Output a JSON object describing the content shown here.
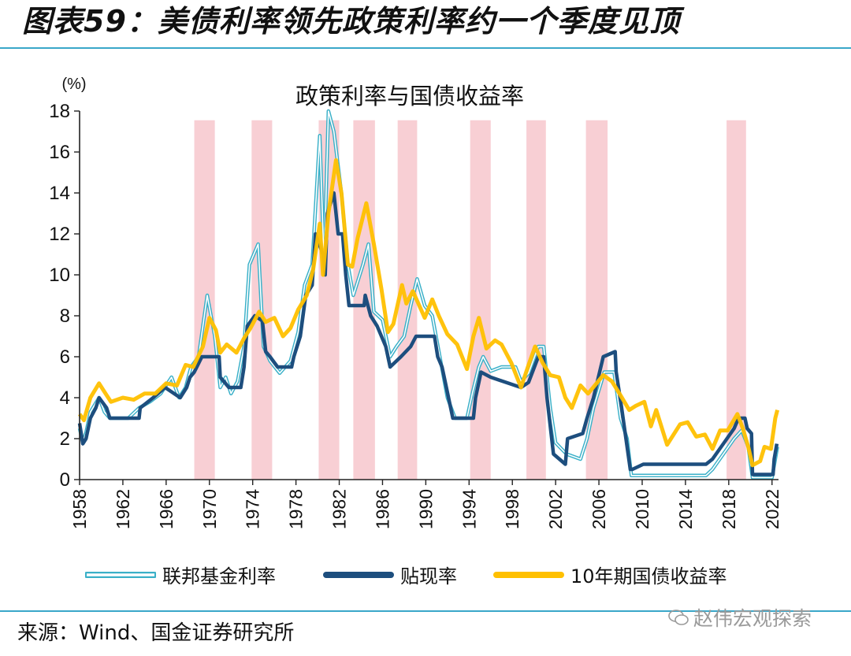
{
  "figure": {
    "title": "图表59：美债利率领先政策利率约一个季度见顶",
    "source": "来源：Wind、国金证券研究所",
    "watermark": "赵伟宏观探索"
  },
  "legend": {
    "items": [
      "联邦基金利率",
      "贴现率",
      "10年期国债收益率"
    ]
  },
  "colors": {
    "fed_funds": "#3ab0c8",
    "discount": "#1d4e7e",
    "treasury_10y": "#ffc000",
    "shading": "#f7c7cc",
    "rule": "#3aa7c9"
  },
  "chart_data": {
    "type": "line",
    "title": "政策利率与国债收益率",
    "unit_label": "(%)",
    "xlabel": "",
    "ylabel": "",
    "xlim": [
      1958,
      2022.6
    ],
    "ylim": [
      0,
      18
    ],
    "y_ticks": [
      0,
      2,
      4,
      6,
      8,
      10,
      12,
      14,
      16,
      18
    ],
    "x_ticks": [
      1958,
      1962,
      1966,
      1970,
      1974,
      1978,
      1982,
      1986,
      1990,
      1994,
      1998,
      2002,
      2006,
      2010,
      2014,
      2018,
      2022
    ],
    "grid": false,
    "legend_position": "bottom",
    "shaded_periods": [
      [
        1968.6,
        1970.5
      ],
      [
        1973.9,
        1975.8
      ],
      [
        1980.1,
        1982.0
      ],
      [
        1983.3,
        1985.3
      ],
      [
        1987.4,
        1989.2
      ],
      [
        1994.1,
        1996.0
      ],
      [
        1999.3,
        2001.1
      ],
      [
        2004.8,
        2006.8
      ],
      [
        2017.8,
        2019.6
      ]
    ],
    "series": [
      {
        "name": "联邦基金利率",
        "style": "double",
        "points": [
          [
            1958,
            2.5
          ],
          [
            1958.3,
            1.8
          ],
          [
            1958.6,
            2.3
          ],
          [
            1959,
            3.3
          ],
          [
            1959.8,
            4.0
          ],
          [
            1960.3,
            3.3
          ],
          [
            1960.8,
            3.0
          ],
          [
            1962.5,
            3.0
          ],
          [
            1963.5,
            3.5
          ],
          [
            1964.5,
            3.8
          ],
          [
            1965.5,
            4.2
          ],
          [
            1966.5,
            5.0
          ],
          [
            1967.2,
            4.0
          ],
          [
            1967.8,
            4.5
          ],
          [
            1968.3,
            5.5
          ],
          [
            1969,
            6.0
          ],
          [
            1969.8,
            9.0
          ],
          [
            1970.5,
            7.0
          ],
          [
            1971,
            4.5
          ],
          [
            1971.5,
            5.0
          ],
          [
            1972,
            4.2
          ],
          [
            1972.6,
            4.8
          ],
          [
            1973.2,
            6.5
          ],
          [
            1973.7,
            10.5
          ],
          [
            1974.5,
            11.5
          ],
          [
            1975,
            6.5
          ],
          [
            1975.6,
            5.8
          ],
          [
            1976.5,
            5.2
          ],
          [
            1977.5,
            5.8
          ],
          [
            1978.2,
            7.2
          ],
          [
            1978.8,
            9.5
          ],
          [
            1979.5,
            10.5
          ],
          [
            1980.2,
            16.8
          ],
          [
            1980.6,
            10.5
          ],
          [
            1981.0,
            18.0
          ],
          [
            1981.5,
            17.0
          ],
          [
            1982.2,
            14.0
          ],
          [
            1982.8,
            10.5
          ],
          [
            1983.3,
            9.0
          ],
          [
            1984.2,
            10.5
          ],
          [
            1984.7,
            11.5
          ],
          [
            1985.2,
            8.2
          ],
          [
            1986,
            7.8
          ],
          [
            1986.7,
            6.0
          ],
          [
            1987.3,
            6.5
          ],
          [
            1988,
            7.0
          ],
          [
            1988.6,
            8.5
          ],
          [
            1989.2,
            9.8
          ],
          [
            1989.9,
            8.5
          ],
          [
            1990.6,
            8.0
          ],
          [
            1991.3,
            6.0
          ],
          [
            1992,
            4.0
          ],
          [
            1992.7,
            3.0
          ],
          [
            1993.8,
            3.0
          ],
          [
            1994.3,
            4.2
          ],
          [
            1994.9,
            5.5
          ],
          [
            1995.3,
            6.0
          ],
          [
            1996,
            5.3
          ],
          [
            1997,
            5.5
          ],
          [
            1998.3,
            5.5
          ],
          [
            1998.8,
            4.8
          ],
          [
            1999.5,
            5.2
          ],
          [
            2000.4,
            6.5
          ],
          [
            2000.9,
            6.5
          ],
          [
            2001.5,
            3.5
          ],
          [
            2002,
            1.8
          ],
          [
            2003,
            1.25
          ],
          [
            2004.3,
            1.0
          ],
          [
            2004.9,
            2.0
          ],
          [
            2005.5,
            3.5
          ],
          [
            2006.5,
            5.25
          ],
          [
            2007.4,
            5.25
          ],
          [
            2008,
            3.0
          ],
          [
            2008.6,
            2.0
          ],
          [
            2009,
            0.2
          ],
          [
            2015.9,
            0.2
          ],
          [
            2016.5,
            0.5
          ],
          [
            2017.5,
            1.25
          ],
          [
            2018.5,
            2.0
          ],
          [
            2019.2,
            2.4
          ],
          [
            2019.8,
            1.6
          ],
          [
            2020.2,
            0.1
          ],
          [
            2022,
            0.1
          ],
          [
            2022.3,
            1.0
          ],
          [
            2022.5,
            1.6
          ]
        ]
      },
      {
        "name": "贴现率",
        "style": "solid",
        "points": [
          [
            1958,
            2.75
          ],
          [
            1958.3,
            1.75
          ],
          [
            1958.6,
            2.0
          ],
          [
            1959,
            3.0
          ],
          [
            1959.5,
            3.5
          ],
          [
            1959.8,
            4.0
          ],
          [
            1960.5,
            3.5
          ],
          [
            1960.8,
            3.0
          ],
          [
            1963.5,
            3.0
          ],
          [
            1963.6,
            3.5
          ],
          [
            1964.8,
            4.0
          ],
          [
            1965.9,
            4.5
          ],
          [
            1967.3,
            4.0
          ],
          [
            1967.9,
            4.5
          ],
          [
            1968.2,
            5.0
          ],
          [
            1968.6,
            5.25
          ],
          [
            1969.3,
            6.0
          ],
          [
            1970.9,
            6.0
          ],
          [
            1971,
            5.0
          ],
          [
            1971.8,
            4.5
          ],
          [
            1972.9,
            4.5
          ],
          [
            1973.2,
            5.5
          ],
          [
            1973.5,
            7.5
          ],
          [
            1974.2,
            8.0
          ],
          [
            1974.9,
            7.75
          ],
          [
            1975.2,
            6.25
          ],
          [
            1975.6,
            6.0
          ],
          [
            1976.3,
            5.5
          ],
          [
            1977.6,
            5.5
          ],
          [
            1977.8,
            6.0
          ],
          [
            1978.4,
            7.0
          ],
          [
            1978.9,
            9.0
          ],
          [
            1979.5,
            9.5
          ],
          [
            1979.8,
            12.0
          ],
          [
            1980.5,
            11.0
          ],
          [
            1980.7,
            10.0
          ],
          [
            1980.9,
            13.0
          ],
          [
            1981.5,
            14.0
          ],
          [
            1981.9,
            12.0
          ],
          [
            1982.3,
            12.0
          ],
          [
            1982.6,
            10.0
          ],
          [
            1982.9,
            8.5
          ],
          [
            1984.3,
            8.5
          ],
          [
            1984.4,
            9.0
          ],
          [
            1984.9,
            8.0
          ],
          [
            1985.5,
            7.5
          ],
          [
            1986.3,
            6.5
          ],
          [
            1986.7,
            5.5
          ],
          [
            1987.7,
            6.0
          ],
          [
            1988.6,
            6.5
          ],
          [
            1989.1,
            7.0
          ],
          [
            1990.8,
            7.0
          ],
          [
            1991.1,
            6.0
          ],
          [
            1991.5,
            5.5
          ],
          [
            1991.9,
            4.5
          ],
          [
            1992.5,
            3.0
          ],
          [
            1994.4,
            3.0
          ],
          [
            1994.6,
            4.0
          ],
          [
            1994.9,
            4.75
          ],
          [
            1995.1,
            5.25
          ],
          [
            1996,
            5.0
          ],
          [
            1998.8,
            4.5
          ],
          [
            1999.5,
            4.75
          ],
          [
            2000.4,
            6.0
          ],
          [
            2000.9,
            6.0
          ],
          [
            2001.2,
            4.0
          ],
          [
            2001.8,
            1.25
          ],
          [
            2002.9,
            0.75
          ],
          [
            2003.1,
            2.0
          ],
          [
            2004.5,
            2.25
          ],
          [
            2004.9,
            3.0
          ],
          [
            2005.5,
            4.0
          ],
          [
            2006.4,
            6.0
          ],
          [
            2007.5,
            6.25
          ],
          [
            2007.6,
            5.25
          ],
          [
            2008.1,
            3.5
          ],
          [
            2008.9,
            0.5
          ],
          [
            2009.1,
            0.5
          ],
          [
            2010.1,
            0.75
          ],
          [
            2015.9,
            0.75
          ],
          [
            2016.5,
            1.0
          ],
          [
            2017.5,
            1.75
          ],
          [
            2018.5,
            2.5
          ],
          [
            2018.9,
            3.0
          ],
          [
            2019.5,
            3.0
          ],
          [
            2019.7,
            2.5
          ],
          [
            2020.1,
            2.25
          ],
          [
            2020.2,
            0.25
          ],
          [
            2022.1,
            0.25
          ],
          [
            2022.2,
            1.0
          ],
          [
            2022.45,
            1.75
          ]
        ]
      },
      {
        "name": "10年期国债收益率",
        "style": "solid",
        "points": [
          [
            1958,
            3.2
          ],
          [
            1958.4,
            2.9
          ],
          [
            1959,
            4.0
          ],
          [
            1959.8,
            4.7
          ],
          [
            1960.4,
            4.2
          ],
          [
            1960.9,
            3.8
          ],
          [
            1962,
            4.0
          ],
          [
            1963,
            3.9
          ],
          [
            1964,
            4.2
          ],
          [
            1965,
            4.2
          ],
          [
            1966,
            4.7
          ],
          [
            1967,
            4.6
          ],
          [
            1967.8,
            5.6
          ],
          [
            1968.5,
            5.5
          ],
          [
            1969.4,
            6.5
          ],
          [
            1970,
            7.9
          ],
          [
            1970.6,
            7.3
          ],
          [
            1971,
            6.2
          ],
          [
            1971.6,
            6.6
          ],
          [
            1972.5,
            6.2
          ],
          [
            1973.2,
            6.9
          ],
          [
            1973.8,
            7.4
          ],
          [
            1974.6,
            8.2
          ],
          [
            1975.2,
            7.7
          ],
          [
            1976,
            7.9
          ],
          [
            1976.8,
            7.0
          ],
          [
            1977.5,
            7.4
          ],
          [
            1978.2,
            8.3
          ],
          [
            1979,
            9.0
          ],
          [
            1979.6,
            10.3
          ],
          [
            1980.2,
            12.5
          ],
          [
            1980.5,
            10.0
          ],
          [
            1981,
            13.0
          ],
          [
            1981.7,
            15.6
          ],
          [
            1982.2,
            14.0
          ],
          [
            1982.8,
            10.5
          ],
          [
            1983.2,
            10.4
          ],
          [
            1983.7,
            11.8
          ],
          [
            1984.5,
            13.5
          ],
          [
            1985.2,
            11.5
          ],
          [
            1985.9,
            9.3
          ],
          [
            1986.5,
            7.2
          ],
          [
            1987,
            7.6
          ],
          [
            1987.8,
            9.5
          ],
          [
            1988.2,
            8.6
          ],
          [
            1988.8,
            9.2
          ],
          [
            1989.4,
            8.5
          ],
          [
            1989.9,
            7.9
          ],
          [
            1990.6,
            8.8
          ],
          [
            1991.2,
            8.0
          ],
          [
            1992,
            7.1
          ],
          [
            1992.9,
            6.6
          ],
          [
            1993.8,
            5.4
          ],
          [
            1994.4,
            7.0
          ],
          [
            1994.9,
            7.9
          ],
          [
            1995.6,
            6.4
          ],
          [
            1996.4,
            6.8
          ],
          [
            1997,
            6.6
          ],
          [
            1997.9,
            5.7
          ],
          [
            1998.8,
            4.5
          ],
          [
            1999.5,
            5.6
          ],
          [
            2000.1,
            6.5
          ],
          [
            2000.8,
            5.7
          ],
          [
            2001.5,
            5.1
          ],
          [
            2002.3,
            5.0
          ],
          [
            2002.9,
            4.0
          ],
          [
            2003.5,
            3.5
          ],
          [
            2004.3,
            4.6
          ],
          [
            2005,
            4.2
          ],
          [
            2006.4,
            5.1
          ],
          [
            2007.2,
            4.8
          ],
          [
            2007.9,
            4.2
          ],
          [
            2008.8,
            3.4
          ],
          [
            2009.4,
            3.6
          ],
          [
            2010.2,
            3.8
          ],
          [
            2010.8,
            2.6
          ],
          [
            2011.3,
            3.4
          ],
          [
            2012.3,
            1.7
          ],
          [
            2013.5,
            2.7
          ],
          [
            2014.2,
            2.8
          ],
          [
            2015,
            2.1
          ],
          [
            2015.8,
            2.2
          ],
          [
            2016.5,
            1.5
          ],
          [
            2017.2,
            2.4
          ],
          [
            2017.9,
            2.4
          ],
          [
            2018.8,
            3.2
          ],
          [
            2019.3,
            2.5
          ],
          [
            2019.8,
            1.6
          ],
          [
            2020.2,
            0.7
          ],
          [
            2020.9,
            0.9
          ],
          [
            2021.3,
            1.6
          ],
          [
            2021.9,
            1.5
          ],
          [
            2022.3,
            3.0
          ],
          [
            2022.5,
            3.4
          ]
        ]
      }
    ]
  }
}
